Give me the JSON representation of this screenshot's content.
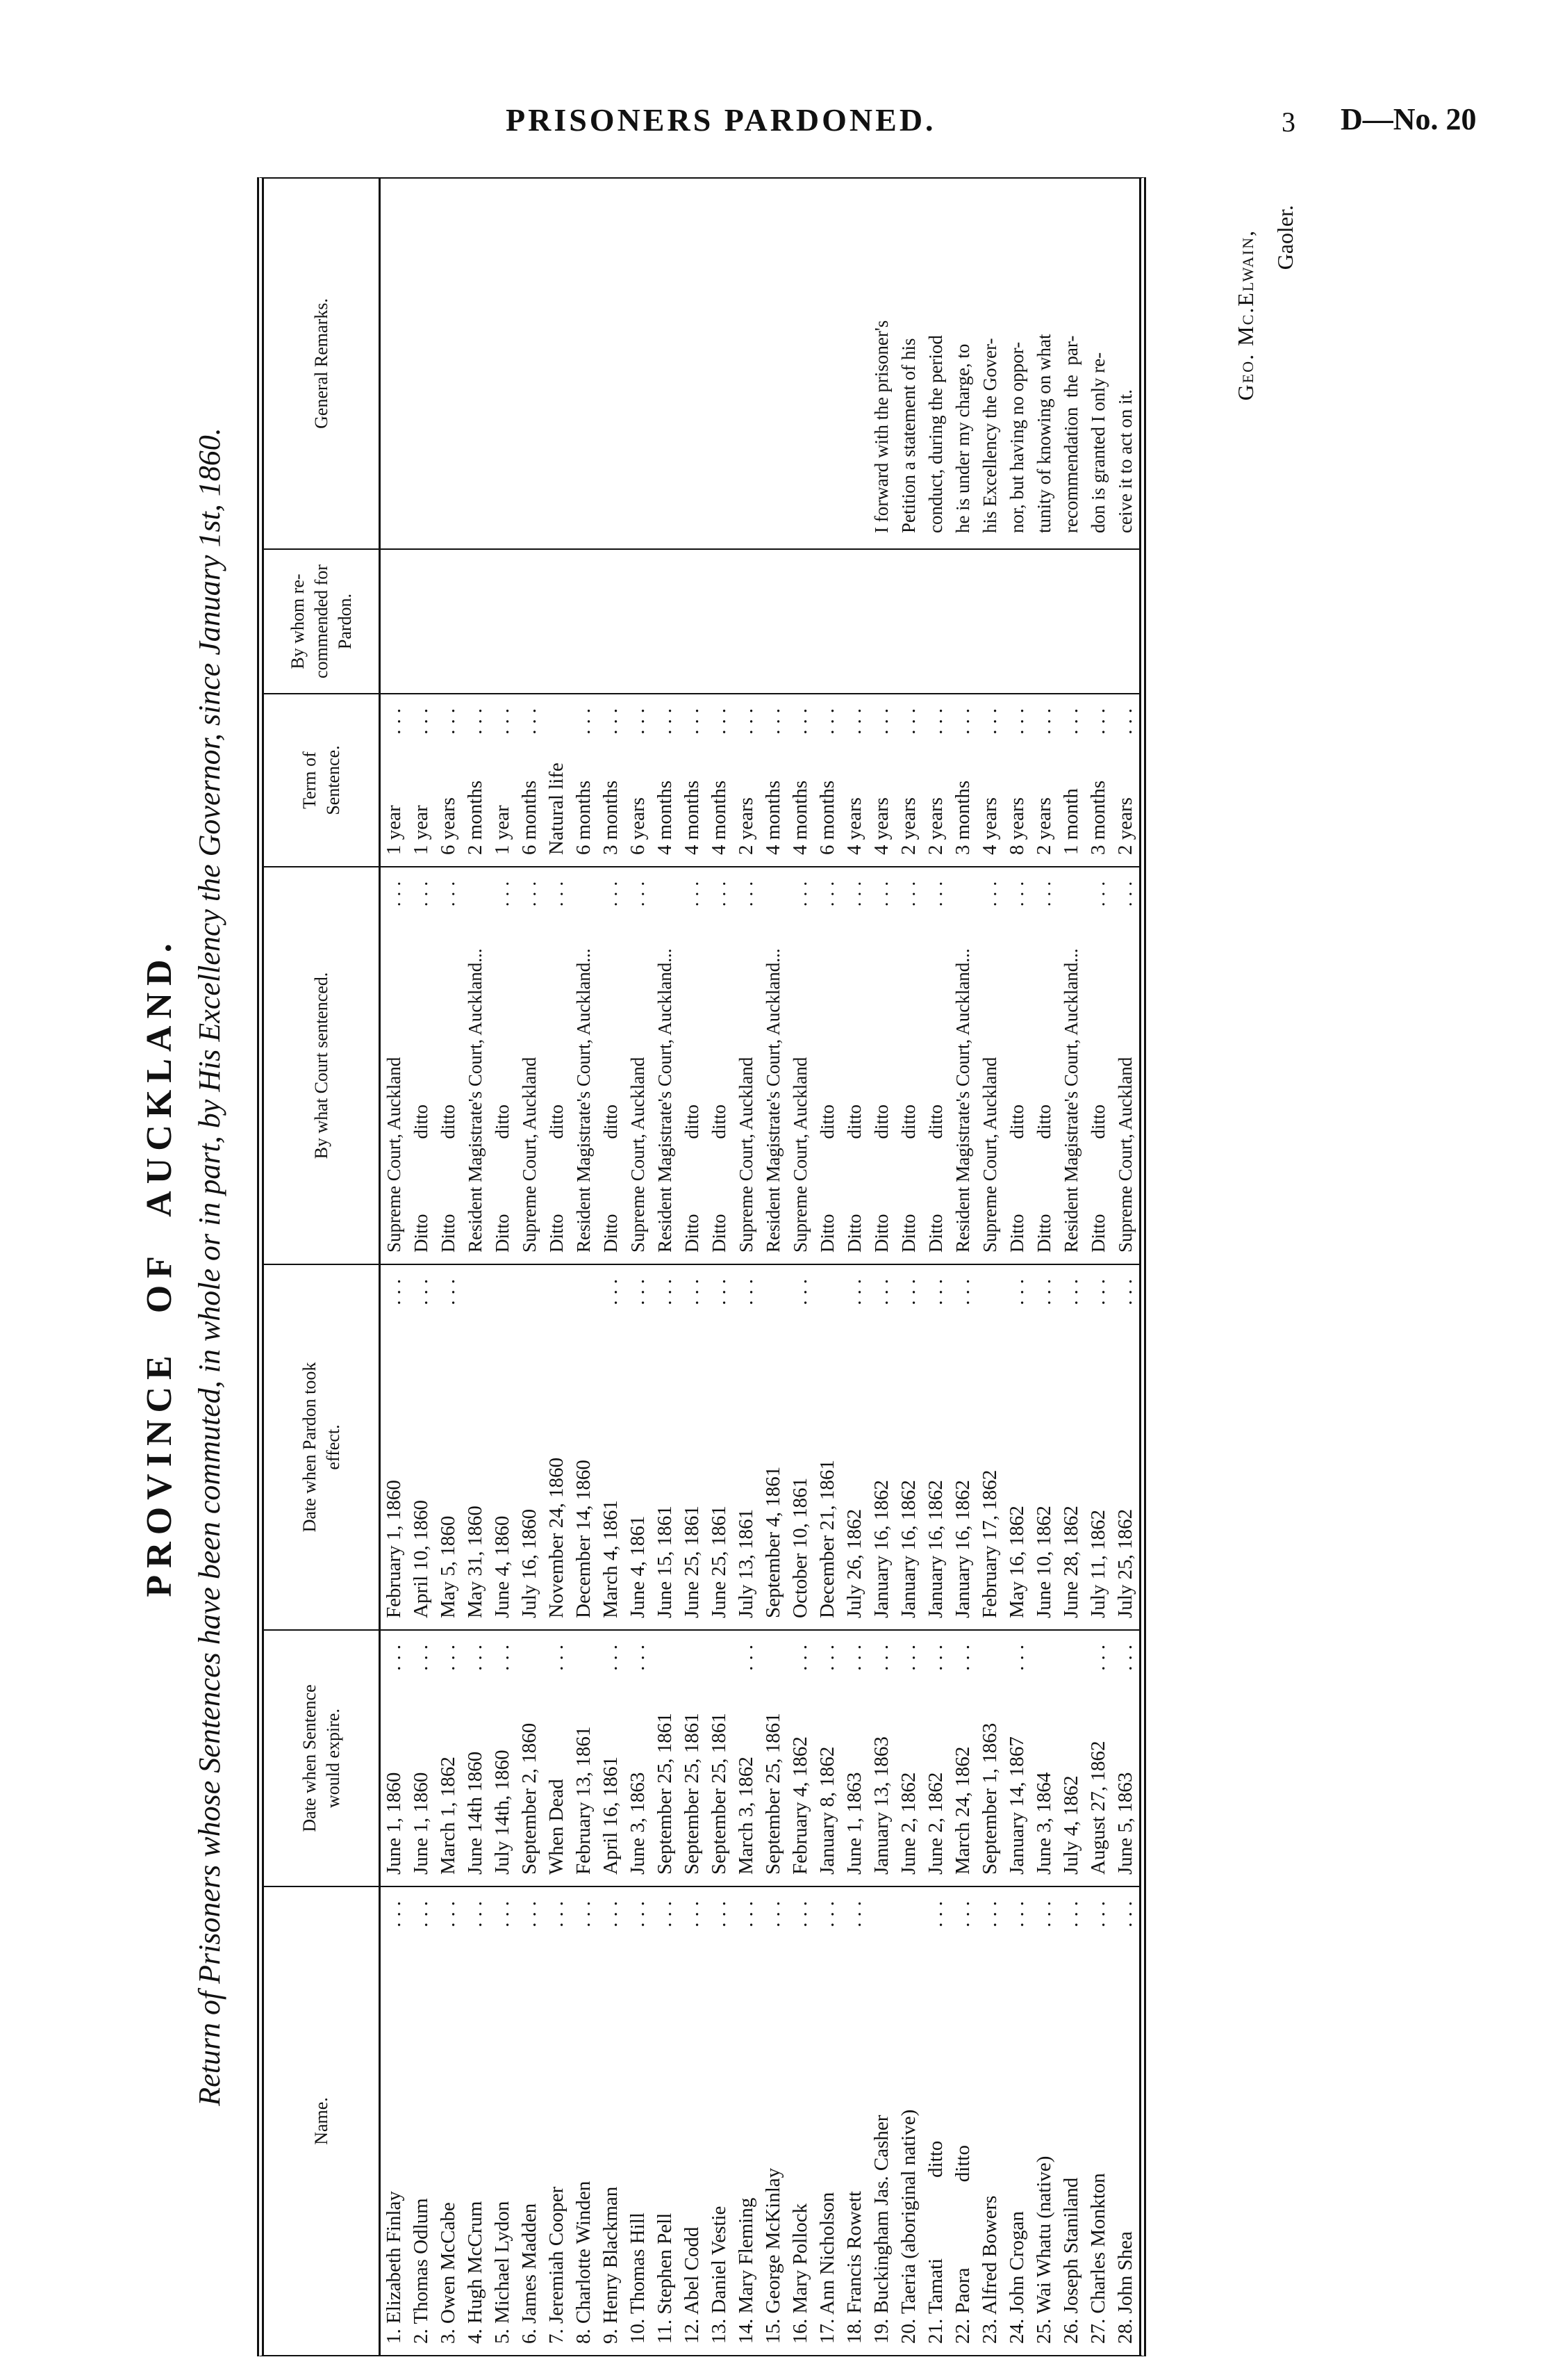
{
  "page": {
    "header": "PRISONERS PARDONED.",
    "page_number": "3",
    "doc_number": "D—No. 20"
  },
  "title": {
    "province": "PROVINCE OF AUCKLAND.",
    "return_line": "Return of Prisoners whose Sentences have been commuted, in whole or in part, by His Excellency the Governor, since January 1st, 1860."
  },
  "signature": {
    "name": "Geo. Mc.Elwain,",
    "role": "Gaoler."
  },
  "colors": {
    "ink": "#111111",
    "paper": "#ffffff"
  },
  "table": {
    "headers": [
      {
        "key": "name",
        "label": "Name."
      },
      {
        "key": "expire",
        "label": "Date when Sentence\nwould expire."
      },
      {
        "key": "pardon",
        "label": "Date when Pardon took\neffect."
      },
      {
        "key": "court",
        "label": "By what Court sentenced."
      },
      {
        "key": "term",
        "label": "Term of\nSentence."
      },
      {
        "key": "bywhom",
        "label": "By whom re-\ncommended for\nPardon."
      },
      {
        "key": "remarks",
        "label": "General Remarks."
      }
    ],
    "rows": [
      {
        "name": {
          "t": "1. Elizabeth Finlay",
          "d": true
        },
        "expire": {
          "t": "June 1, 1860",
          "d": true
        },
        "pardon": {
          "t": "February 1, 1860",
          "d": true
        },
        "court": {
          "t": "Supreme Court, Auckland",
          "d": true
        },
        "term": {
          "t": "1 year",
          "d": true
        },
        "bywhom": "",
        "remarks": ""
      },
      {
        "name": {
          "t": "2. Thomas Odlum",
          "d": true
        },
        "expire": {
          "t": "June 1, 1860",
          "d": true
        },
        "pardon": {
          "t": "April 10, 1860",
          "d": true
        },
        "court": {
          "t": "Ditto    ditto",
          "d": true
        },
        "term": {
          "t": "1 year",
          "d": true
        },
        "bywhom": "",
        "remarks": ""
      },
      {
        "name": {
          "t": "3. Owen McCabe",
          "d": true
        },
        "expire": {
          "t": "March 1, 1862",
          "d": true
        },
        "pardon": {
          "t": "May 5, 1860",
          "d": true
        },
        "court": {
          "t": "Ditto    ditto",
          "d": true
        },
        "term": {
          "t": "6 years",
          "d": true
        },
        "bywhom": "",
        "remarks": ""
      },
      {
        "name": {
          "t": "4. Hugh McCrum",
          "d": true
        },
        "expire": {
          "t": "June 14th 1860",
          "d": true
        },
        "pardon": {
          "t": "May 31, 1860",
          "d": false
        },
        "court": {
          "t": "Resident Magistrate's Court, Auckland...",
          "d": false
        },
        "term": {
          "t": "2 months",
          "d": true
        },
        "bywhom": "",
        "remarks": ""
      },
      {
        "name": {
          "t": "5. Michael Lydon",
          "d": true
        },
        "expire": {
          "t": "July 14th, 1860",
          "d": true
        },
        "pardon": {
          "t": "June 4, 1860",
          "d": false
        },
        "court": {
          "t": "Ditto    ditto",
          "d": true
        },
        "term": {
          "t": "1 year",
          "d": true
        },
        "bywhom": "",
        "remarks": ""
      },
      {
        "name": {
          "t": "6. James Madden",
          "d": true
        },
        "expire": {
          "t": "September 2, 1860",
          "d": false
        },
        "pardon": {
          "t": "July 16, 1860",
          "d": false
        },
        "court": {
          "t": "Supreme Court, Auckland",
          "d": true
        },
        "term": {
          "t": "6 months",
          "d": true
        },
        "bywhom": "",
        "remarks": ""
      },
      {
        "name": {
          "t": "7. Jeremiah Cooper",
          "d": true
        },
        "expire": {
          "t": "When Dead",
          "d": true
        },
        "pardon": {
          "t": "November 24, 1860",
          "d": false
        },
        "court": {
          "t": "Ditto    ditto",
          "d": true
        },
        "term": {
          "t": "Natural life",
          "d": false
        },
        "bywhom": "",
        "remarks": ""
      },
      {
        "name": {
          "t": "8. Charlotte Winden",
          "d": true
        },
        "expire": {
          "t": "February 13, 1861",
          "d": false
        },
        "pardon": {
          "t": "December 14, 1860",
          "d": false
        },
        "court": {
          "t": "Resident Magistrate's Court, Auckland...",
          "d": false
        },
        "term": {
          "t": "6 months",
          "d": true
        },
        "bywhom": "",
        "remarks": ""
      },
      {
        "name": {
          "t": "9. Henry Blackman",
          "d": true
        },
        "expire": {
          "t": "April 16, 1861",
          "d": true
        },
        "pardon": {
          "t": "March 4, 1861",
          "d": true
        },
        "court": {
          "t": "Ditto    ditto",
          "d": true
        },
        "term": {
          "t": "3 months",
          "d": true
        },
        "bywhom": "",
        "remarks": ""
      },
      {
        "name": {
          "t": "10. Thomas Hill",
          "d": true
        },
        "expire": {
          "t": "June 3, 1863",
          "d": true
        },
        "pardon": {
          "t": "June 4, 1861",
          "d": true
        },
        "court": {
          "t": "Supreme Court, Auckland",
          "d": true
        },
        "term": {
          "t": "6 years",
          "d": true
        },
        "bywhom": "",
        "remarks": ""
      },
      {
        "name": {
          "t": "11. Stephen Pell",
          "d": true
        },
        "expire": {
          "t": "September 25, 1861",
          "d": false
        },
        "pardon": {
          "t": "June 15, 1861",
          "d": true
        },
        "court": {
          "t": "Resident Magistrate's Court, Auckland...",
          "d": false
        },
        "term": {
          "t": "4 months",
          "d": true
        },
        "bywhom": "",
        "remarks": ""
      },
      {
        "name": {
          "t": "12. Abel Codd",
          "d": true
        },
        "expire": {
          "t": "September 25, 1861",
          "d": false
        },
        "pardon": {
          "t": "June 25, 1861",
          "d": true
        },
        "court": {
          "t": "Ditto    ditto",
          "d": true
        },
        "term": {
          "t": "4 months",
          "d": true
        },
        "bywhom": "",
        "remarks": ""
      },
      {
        "name": {
          "t": "13. Daniel Vestie",
          "d": true
        },
        "expire": {
          "t": "September 25, 1861",
          "d": false
        },
        "pardon": {
          "t": "June 25, 1861",
          "d": true
        },
        "court": {
          "t": "Ditto    ditto",
          "d": true
        },
        "term": {
          "t": "4 months",
          "d": true
        },
        "bywhom": "",
        "remarks": ""
      },
      {
        "name": {
          "t": "14. Mary Fleming",
          "d": true
        },
        "expire": {
          "t": "March 3, 1862",
          "d": true
        },
        "pardon": {
          "t": "July 13, 1861",
          "d": true
        },
        "court": {
          "t": "Supreme Court, Auckland",
          "d": true
        },
        "term": {
          "t": "2 years",
          "d": true
        },
        "bywhom": "",
        "remarks": ""
      },
      {
        "name": {
          "t": "15. George McKinlay",
          "d": true
        },
        "expire": {
          "t": "September 25, 1861",
          "d": false
        },
        "pardon": {
          "t": "September 4, 1861",
          "d": false
        },
        "court": {
          "t": "Resident Magistrate's Court, Auckland...",
          "d": false
        },
        "term": {
          "t": "4 months",
          "d": true
        },
        "bywhom": "",
        "remarks": ""
      },
      {
        "name": {
          "t": "16. Mary Pollock",
          "d": true
        },
        "expire": {
          "t": "February 4, 1862",
          "d": true
        },
        "pardon": {
          "t": "October 10, 1861",
          "d": true
        },
        "court": {
          "t": "Supreme Court, Auckland",
          "d": true
        },
        "term": {
          "t": "4 months",
          "d": true
        },
        "bywhom": "",
        "remarks": ""
      },
      {
        "name": {
          "t": "17. Ann Nicholson",
          "d": true
        },
        "expire": {
          "t": "January 8, 1862",
          "d": true
        },
        "pardon": {
          "t": "December 21, 1861",
          "d": false
        },
        "court": {
          "t": "Ditto    ditto",
          "d": true
        },
        "term": {
          "t": "6 months",
          "d": true
        },
        "bywhom": "",
        "remarks": ""
      },
      {
        "name": {
          "t": "18. Francis Rowett",
          "d": true
        },
        "expire": {
          "t": "June 1, 1863",
          "d": true
        },
        "pardon": {
          "t": "July 26, 1862",
          "d": true
        },
        "court": {
          "t": "Ditto    ditto",
          "d": true
        },
        "term": {
          "t": "4 years",
          "d": true
        },
        "bywhom": "",
        "remarks": ""
      },
      {
        "name": {
          "t": "19. Buckingham Jas. Casher",
          "d": false
        },
        "expire": {
          "t": "January 13, 1863",
          "d": true
        },
        "pardon": {
          "t": "January 16, 1862",
          "d": true
        },
        "court": {
          "t": "Ditto    ditto",
          "d": true
        },
        "term": {
          "t": "4 years",
          "d": true
        },
        "bywhom": "",
        "remarks": "I forward with the prisoner's"
      },
      {
        "name": {
          "t": "20. Taeria (aboriginal native)",
          "d": false
        },
        "expire": {
          "t": "June 2, 1862",
          "d": true
        },
        "pardon": {
          "t": "January 16, 1862",
          "d": true
        },
        "court": {
          "t": "Ditto    ditto",
          "d": true
        },
        "term": {
          "t": "2 years",
          "d": true
        },
        "bywhom": "",
        "remarks": "Petition a statement of his"
      },
      {
        "name": {
          "t": "21. Tamati    ditto",
          "d": true
        },
        "expire": {
          "t": "June 2, 1862",
          "d": true
        },
        "pardon": {
          "t": "January 16, 1862",
          "d": true
        },
        "court": {
          "t": "Ditto    ditto",
          "d": true
        },
        "term": {
          "t": "2 years",
          "d": true
        },
        "bywhom": "",
        "remarks": "conduct, during the period"
      },
      {
        "name": {
          "t": "22. Paora     ditto",
          "d": true
        },
        "expire": {
          "t": "March 24, 1862",
          "d": true
        },
        "pardon": {
          "t": "January 16, 1862",
          "d": true
        },
        "court": {
          "t": "Resident Magistrate's Court, Auckland...",
          "d": false
        },
        "term": {
          "t": "3 months",
          "d": true
        },
        "bywhom": "",
        "remarks": "he is under my charge, to"
      },
      {
        "name": {
          "t": "23. Alfred Bowers",
          "d": true
        },
        "expire": {
          "t": "September 1, 1863",
          "d": false
        },
        "pardon": {
          "t": "February 17, 1862",
          "d": false
        },
        "court": {
          "t": "Supreme Court, Auckland",
          "d": true
        },
        "term": {
          "t": "4 years",
          "d": true
        },
        "bywhom": "",
        "remarks": "his Excellency the Gover-"
      },
      {
        "name": {
          "t": "24. John Crogan",
          "d": true
        },
        "expire": {
          "t": "January 14, 1867",
          "d": true
        },
        "pardon": {
          "t": "May 16, 1862",
          "d": true
        },
        "court": {
          "t": "Ditto    ditto",
          "d": true
        },
        "term": {
          "t": "8 years",
          "d": true
        },
        "bywhom": "",
        "remarks": "nor, but having no oppor-"
      },
      {
        "name": {
          "t": "25. Wai Whatu (native)",
          "d": true
        },
        "expire": {
          "t": "June 3, 1864",
          "d": false
        },
        "pardon": {
          "t": "June 10, 1862",
          "d": true
        },
        "court": {
          "t": "Ditto    ditto",
          "d": true
        },
        "term": {
          "t": "2 years",
          "d": true
        },
        "bywhom": "",
        "remarks": "tunity of knowing on what"
      },
      {
        "name": {
          "t": "26. Joseph Staniland",
          "d": true
        },
        "expire": {
          "t": "July 4, 1862",
          "d": false
        },
        "pardon": {
          "t": "June 28, 1862",
          "d": true
        },
        "court": {
          "t": "Resident Magistrate's Court, Auckland...",
          "d": false
        },
        "term": {
          "t": "1 month",
          "d": true
        },
        "bywhom": "",
        "remarks": "recommendation  the  par-"
      },
      {
        "name": {
          "t": "27. Charles Monkton",
          "d": true
        },
        "expire": {
          "t": "August 27, 1862",
          "d": true
        },
        "pardon": {
          "t": "July 11, 1862",
          "d": true
        },
        "court": {
          "t": "Ditto    ditto",
          "d": true
        },
        "term": {
          "t": "3 months",
          "d": true
        },
        "bywhom": "",
        "remarks": "don is granted I only re-"
      },
      {
        "name": {
          "t": "28. John Shea",
          "d": true
        },
        "expire": {
          "t": "June 5, 1863",
          "d": true
        },
        "pardon": {
          "t": "July 25, 1862",
          "d": true
        },
        "court": {
          "t": "Supreme Court, Auckland",
          "d": true
        },
        "term": {
          "t": "2 years",
          "d": true
        },
        "bywhom": "",
        "remarks": "ceive it to act on it."
      }
    ]
  }
}
